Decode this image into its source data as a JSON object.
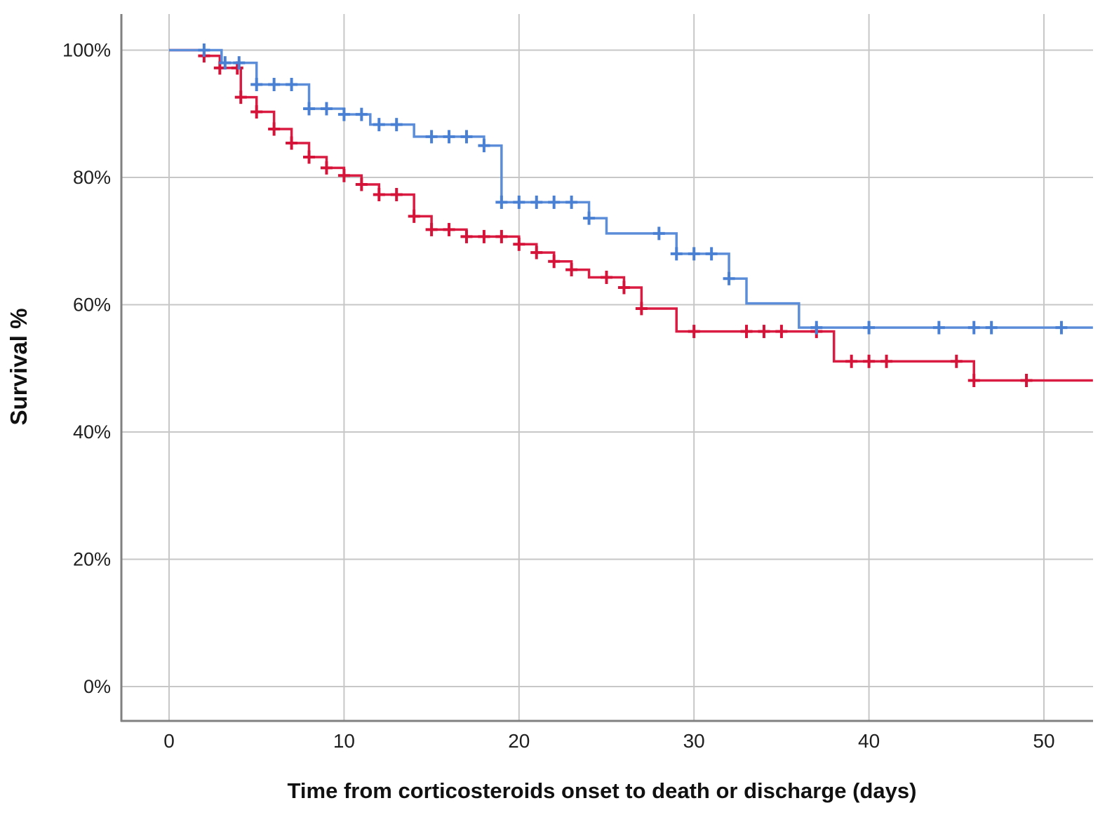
{
  "chart_data": {
    "type": "line",
    "subtype": "kaplan-meier-survival",
    "title": "",
    "xlabel": "Time from corticosteroids onset to death or discharge (days)",
    "ylabel": "Survival %",
    "x_ticks": [
      0,
      10,
      20,
      30,
      40,
      50
    ],
    "y_tick_values": [
      0,
      20,
      40,
      60,
      80,
      100
    ],
    "y_tick_labels": [
      "0%",
      "20%",
      "40%",
      "60%",
      "80%",
      "100%"
    ],
    "xlim": [
      -2.8,
      52.8
    ],
    "ylim": [
      -5.7,
      105.7
    ],
    "grid": true,
    "legend": "none",
    "axis_color": "#808080",
    "grid_color": "#c7c7c7",
    "text_color": "#1f1f1f",
    "series": [
      {
        "name": "group-red",
        "color": "#da1b42",
        "censor_color": "#d51238",
        "end_day": 52.8,
        "steps": [
          [
            0,
            100
          ],
          [
            2,
            99.1
          ],
          [
            2.9,
            97.2
          ],
          [
            4.1,
            92.6
          ],
          [
            5,
            90.3
          ],
          [
            6,
            87.6
          ],
          [
            7,
            85.4
          ],
          [
            8,
            83.2
          ],
          [
            9,
            81.5
          ],
          [
            10,
            80.3
          ],
          [
            11,
            78.9
          ],
          [
            12,
            77.3
          ],
          [
            14,
            73.9
          ],
          [
            15,
            71.8
          ],
          [
            17,
            70.7
          ],
          [
            20,
            69.5
          ],
          [
            21,
            68.2
          ],
          [
            22,
            66.8
          ],
          [
            23,
            65.5
          ],
          [
            24,
            64.3
          ],
          [
            26,
            62.7
          ],
          [
            27,
            59.4
          ],
          [
            29,
            55.8
          ],
          [
            38,
            51.1
          ],
          [
            46,
            48.1
          ]
        ],
        "censors": [
          [
            2,
            99.1
          ],
          [
            2.9,
            97.2
          ],
          [
            3.9,
            97.2
          ],
          [
            4.1,
            92.6
          ],
          [
            5,
            90.3
          ],
          [
            6,
            87.6
          ],
          [
            7,
            85.4
          ],
          [
            8,
            83.2
          ],
          [
            9,
            81.5
          ],
          [
            10,
            80.3
          ],
          [
            11,
            78.9
          ],
          [
            12,
            77.3
          ],
          [
            13,
            77.3
          ],
          [
            14,
            73.9
          ],
          [
            15,
            71.8
          ],
          [
            16,
            71.8
          ],
          [
            17,
            70.7
          ],
          [
            18,
            70.7
          ],
          [
            19,
            70.7
          ],
          [
            20,
            69.5
          ],
          [
            21,
            68.2
          ],
          [
            22,
            66.8
          ],
          [
            23,
            65.5
          ],
          [
            25,
            64.3
          ],
          [
            26,
            62.7
          ],
          [
            27,
            59.4
          ],
          [
            30,
            55.8
          ],
          [
            33,
            55.8
          ],
          [
            34,
            55.8
          ],
          [
            35,
            55.8
          ],
          [
            37,
            55.8
          ],
          [
            39,
            51.1
          ],
          [
            40,
            51.1
          ],
          [
            41,
            51.1
          ],
          [
            45,
            51.1
          ],
          [
            46,
            48.1
          ],
          [
            49,
            48.1
          ]
        ]
      },
      {
        "name": "group-blue",
        "color": "#5b8dd9",
        "censor_color": "#4a80d3",
        "end_day": 52.8,
        "steps": [
          [
            0,
            100
          ],
          [
            3,
            98.0
          ],
          [
            5,
            94.6
          ],
          [
            8,
            90.8
          ],
          [
            10,
            89.9
          ],
          [
            11.5,
            88.3
          ],
          [
            14,
            86.4
          ],
          [
            18,
            85.0
          ],
          [
            19,
            76.1
          ],
          [
            24,
            73.6
          ],
          [
            25,
            71.2
          ],
          [
            29,
            68.0
          ],
          [
            32,
            64.1
          ],
          [
            33,
            60.2
          ],
          [
            36,
            56.4
          ]
        ],
        "censors": [
          [
            2,
            100
          ],
          [
            3.2,
            98.0
          ],
          [
            4,
            98.0
          ],
          [
            5,
            94.6
          ],
          [
            6,
            94.6
          ],
          [
            7,
            94.6
          ],
          [
            8,
            90.8
          ],
          [
            9,
            90.8
          ],
          [
            10,
            89.9
          ],
          [
            11,
            89.9
          ],
          [
            12,
            88.3
          ],
          [
            13,
            88.3
          ],
          [
            15,
            86.4
          ],
          [
            16,
            86.4
          ],
          [
            17,
            86.4
          ],
          [
            18,
            85.0
          ],
          [
            19,
            76.1
          ],
          [
            20,
            76.1
          ],
          [
            21,
            76.1
          ],
          [
            22,
            76.1
          ],
          [
            23,
            76.1
          ],
          [
            24,
            73.6
          ],
          [
            28,
            71.2
          ],
          [
            29,
            68.0
          ],
          [
            30,
            68.0
          ],
          [
            31,
            68.0
          ],
          [
            32,
            64.1
          ],
          [
            37,
            56.4
          ],
          [
            40,
            56.4
          ],
          [
            44,
            56.4
          ],
          [
            46,
            56.4
          ],
          [
            47,
            56.4
          ],
          [
            51,
            56.4
          ]
        ]
      }
    ]
  }
}
